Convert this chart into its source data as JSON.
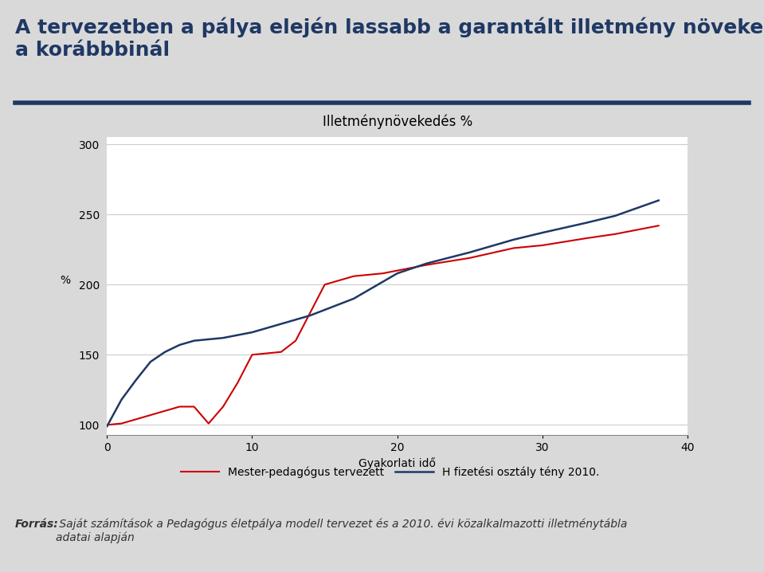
{
  "title_main": "A tervezetben a pálya elején lassabb a garantált illetmény növekedési üteme\na korábbbinál",
  "chart_title": "Illetménynövekedés %",
  "xlabel": "Gyakorlati idő",
  "ylabel": "%",
  "footer_label": "Forrás:",
  "footer_text": " Saját számítások a Pedagógus életPálya modell tervezet és a 2010. évi közalkalmazotti illetménytábla\nadatai alapján",
  "xlim": [
    0,
    40
  ],
  "ylim": [
    93,
    305
  ],
  "yticks": [
    100,
    150,
    200,
    250,
    300
  ],
  "xticks": [
    0,
    10,
    20,
    30,
    40
  ],
  "red_x": [
    0,
    1,
    2,
    3,
    4,
    5,
    6,
    7,
    8,
    9,
    10,
    11,
    12,
    13,
    14,
    15,
    16,
    17,
    18,
    19,
    20,
    22,
    25,
    28,
    30,
    33,
    35,
    38
  ],
  "red_y": [
    100,
    101,
    104,
    107,
    110,
    113,
    113,
    101,
    113,
    130,
    150,
    151,
    152,
    160,
    180,
    200,
    203,
    206,
    207,
    208,
    210,
    214,
    219,
    226,
    228,
    233,
    236,
    242
  ],
  "blue_x": [
    0,
    1,
    2,
    3,
    4,
    5,
    6,
    7,
    8,
    9,
    10,
    12,
    14,
    15,
    17,
    20,
    22,
    25,
    28,
    30,
    33,
    35,
    38
  ],
  "blue_y": [
    99,
    118,
    132,
    145,
    152,
    157,
    160,
    161,
    162,
    164,
    166,
    172,
    178,
    182,
    190,
    208,
    215,
    223,
    232,
    237,
    244,
    249,
    260
  ],
  "red_color": "#cc0000",
  "blue_color": "#1f3864",
  "red_label": "Mester-pedagógus tervezett",
  "blue_label": "H fizetési osztály tény 2010.",
  "outer_bg_color": "#d9d9d9",
  "plot_box_bg": "#f2f2f2",
  "plot_area_bg": "#ffffff",
  "title_color": "#1f3864",
  "footer_color": "#333333",
  "rule_color": "#1f3864",
  "title_fontsize": 18,
  "chart_title_fontsize": 12,
  "axis_label_fontsize": 10,
  "tick_fontsize": 10,
  "legend_fontsize": 10,
  "footer_fontsize": 10
}
